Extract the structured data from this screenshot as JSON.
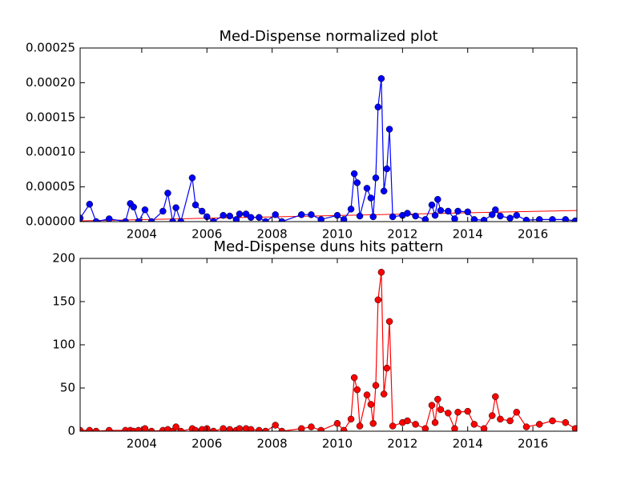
{
  "chart_data": [
    {
      "type": "line",
      "title": "Med-Dispense normalized plot",
      "x": [
        2002.11,
        2002.4,
        2002.6,
        2003.0,
        2003.5,
        2003.65,
        2003.75,
        2003.9,
        2004.1,
        2004.3,
        2004.65,
        2004.8,
        2004.95,
        2005.05,
        2005.2,
        2005.55,
        2005.65,
        2005.85,
        2006.0,
        2006.2,
        2006.5,
        2006.7,
        2006.9,
        2007.0,
        2007.2,
        2007.35,
        2007.6,
        2007.8,
        2008.1,
        2008.3,
        2008.9,
        2009.2,
        2009.5,
        2010.0,
        2010.2,
        2010.42,
        2010.52,
        2010.61,
        2010.69,
        2010.91,
        2011.03,
        2011.1,
        2011.18,
        2011.25,
        2011.35,
        2011.43,
        2011.52,
        2011.6,
        2011.7,
        2012.0,
        2012.15,
        2012.4,
        2012.7,
        2012.9,
        2013.0,
        2013.08,
        2013.17,
        2013.4,
        2013.6,
        2013.7,
        2014.0,
        2014.2,
        2014.5,
        2014.75,
        2014.85,
        2015.0,
        2015.3,
        2015.5,
        2015.8,
        2016.2,
        2016.6,
        2017.0,
        2017.3
      ],
      "series": [
        {
          "color": "#0000ff",
          "values": [
            5e-06,
            2.5e-05,
            0,
            4e-06,
            0,
            2.6e-05,
            2.1e-05,
            0,
            1.7e-05,
            0,
            1.5e-05,
            4.1e-05,
            0,
            2e-05,
            0,
            6.3e-05,
            2.4e-05,
            1.5e-05,
            7e-06,
            0,
            9e-06,
            8e-06,
            3e-06,
            1.1e-05,
            1.1e-05,
            6e-06,
            6e-06,
            0,
            1e-05,
            0,
            1e-05,
            1e-05,
            3e-06,
            9e-06,
            3e-06,
            1.8e-05,
            6.9e-05,
            5.6e-05,
            8e-06,
            4.8e-05,
            3.4e-05,
            7e-06,
            6.3e-05,
            0.000165,
            0.000206,
            4.4e-05,
            7.6e-05,
            0.000133,
            7e-06,
            9e-06,
            1.2e-05,
            8e-06,
            3e-06,
            2.4e-05,
            9e-06,
            3.2e-05,
            1.6e-05,
            1.5e-05,
            4e-06,
            1.5e-05,
            1.4e-05,
            3e-06,
            2e-06,
            1e-05,
            1.7e-05,
            8e-06,
            5e-06,
            9e-06,
            2e-06,
            3e-06,
            3e-06,
            3e-06,
            1e-06
          ]
        }
      ],
      "trend": {
        "color": "#ff0000",
        "x": [
          2002.11,
          2017.35
        ],
        "values": [
          1e-06,
          1.6e-05
        ]
      },
      "xlim": [
        2002.11,
        2017.35
      ],
      "xticks": [
        2004,
        2006,
        2008,
        2010,
        2012,
        2014,
        2016
      ],
      "ylim": [
        0,
        0.00025
      ],
      "yticks": [
        {
          "value": 0,
          "label": "0.00000"
        },
        {
          "value": 5e-05,
          "label": "0.00005"
        },
        {
          "value": 0.0001,
          "label": "0.00010"
        },
        {
          "value": 0.00015,
          "label": "0.00015"
        },
        {
          "value": 0.0002,
          "label": "0.00020"
        },
        {
          "value": 0.00025,
          "label": "0.00025"
        }
      ]
    },
    {
      "type": "line",
      "title": "Med-Dispense duns hits pattern",
      "x": [
        2002.11,
        2002.4,
        2002.6,
        2003.0,
        2003.5,
        2003.65,
        2003.75,
        2003.9,
        2004.1,
        2004.3,
        2004.65,
        2004.8,
        2004.95,
        2005.05,
        2005.2,
        2005.55,
        2005.65,
        2005.85,
        2006.0,
        2006.2,
        2006.5,
        2006.7,
        2006.9,
        2007.0,
        2007.2,
        2007.35,
        2007.6,
        2007.8,
        2008.1,
        2008.3,
        2008.9,
        2009.2,
        2009.5,
        2010.0,
        2010.2,
        2010.42,
        2010.52,
        2010.61,
        2010.69,
        2010.91,
        2011.03,
        2011.1,
        2011.18,
        2011.25,
        2011.35,
        2011.43,
        2011.52,
        2011.6,
        2011.7,
        2012.0,
        2012.15,
        2012.4,
        2012.7,
        2012.9,
        2013.0,
        2013.08,
        2013.17,
        2013.4,
        2013.6,
        2013.7,
        2014.0,
        2014.2,
        2014.5,
        2014.75,
        2014.85,
        2015.0,
        2015.3,
        2015.5,
        2015.8,
        2016.2,
        2016.6,
        2017.0,
        2017.3
      ],
      "series": [
        {
          "color": "#ff0000",
          "values": [
            1,
            1,
            0,
            1,
            1,
            1,
            0,
            1,
            3,
            0,
            1,
            2,
            0,
            5,
            0,
            3,
            1,
            2,
            3,
            0,
            3,
            2,
            1,
            3,
            3,
            2,
            1,
            0,
            7,
            0,
            3,
            5,
            1,
            9,
            1,
            14,
            62,
            48,
            6,
            42,
            31,
            9,
            53,
            152,
            184,
            43,
            73,
            127,
            6,
            10,
            12,
            8,
            3,
            30,
            10,
            37,
            25,
            21,
            3,
            22,
            23,
            8,
            3,
            18,
            40,
            14,
            12,
            22,
            5,
            8,
            12,
            10,
            3
          ]
        }
      ],
      "xlim": [
        2002.11,
        2017.35
      ],
      "xticks": [
        2004,
        2006,
        2008,
        2010,
        2012,
        2014,
        2016
      ],
      "ylim": [
        0,
        200
      ],
      "yticks": [
        0,
        50,
        100,
        150,
        200
      ]
    }
  ]
}
